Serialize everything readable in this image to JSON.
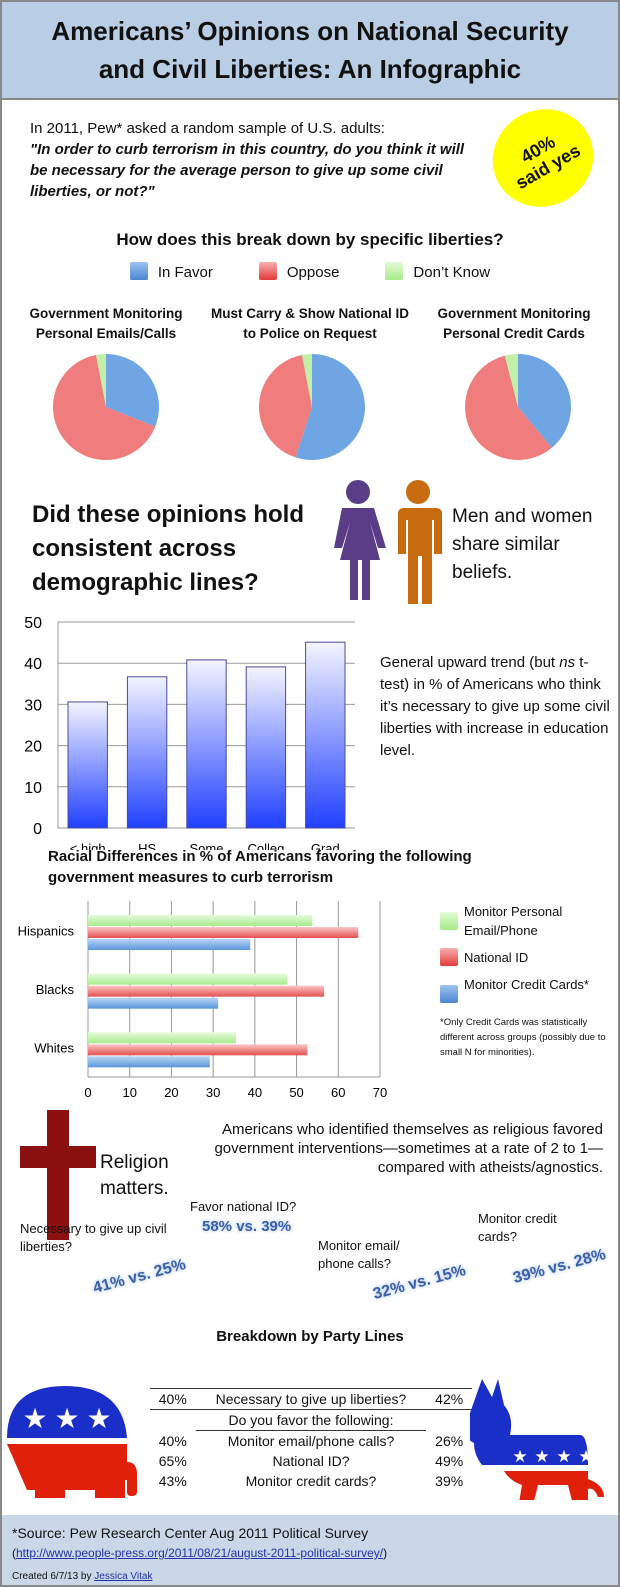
{
  "header": {
    "title_line1": "Americans’ Opinions on National Security",
    "title_line2": "and Civil Liberties: An Infographic"
  },
  "intro": {
    "text": "In 2011, Pew* asked a random sample of U.S. adults:",
    "question": "\"In order to curb terrorism in this country, do you think it will be necessary for the average person to give up some civil liberties, or not?\"",
    "badge_line1": "40%",
    "badge_line2": "said yes"
  },
  "breakdown": {
    "heading": "How does this break down by specific liberties?"
  },
  "colors": {
    "in_favor": "#5b9bd5",
    "oppose": "#ee6a6a",
    "dont_know": "#b8f0a0",
    "bar": "#2040ff",
    "women": "#5a3d86",
    "men": "#c86a10",
    "cross": "#8b1010",
    "rep_blue": "#1a2ec8",
    "rep_red": "#e0200a"
  },
  "demographics": {
    "heading": "Did these opinions hold consistent across demographic lines?",
    "gender_note": "Men and women share similar beliefs.",
    "edu_note_pre": "General upward trend (but ",
    "edu_note_ns": "ns",
    "edu_note_post": " t-test) in % of Americans who think it’s necessary to give up some civil liberties with increase in education level."
  },
  "race": {
    "footnote": "*Only Credit Cards was statistically different across groups (possibly due to small N for minorities)."
  },
  "religion": {
    "label": "Religion matters.",
    "text": "Americans who identified themselves as religious favored government interventions—sometimes at a rate of 2 to 1—compared with atheists/agnostics.",
    "stats": [
      {
        "q": "Necessary to give up civil liberties?",
        "v": "41% vs. 25%"
      },
      {
        "q": "Favor national ID?",
        "v": "58% vs. 39%"
      },
      {
        "q": "Monitor email/ phone calls?",
        "v": "32% vs. 15%"
      },
      {
        "q": "Monitor credit cards?",
        "v": "39% vs. 28%"
      }
    ]
  },
  "party": {
    "title": "Breakdown by Party Lines",
    "rows": [
      {
        "rep": "40%",
        "q": "Necessary to give up liberties?",
        "dem": "42%"
      }
    ],
    "subhead": "Do you favor the following:",
    "favor_rows": [
      {
        "rep": "40%",
        "q": "Monitor email/phone calls?",
        "dem": "26%"
      },
      {
        "rep": "65%",
        "q": "National ID?",
        "dem": "49%"
      },
      {
        "rep": "43%",
        "q": "Monitor credit cards?",
        "dem": "39%"
      }
    ]
  },
  "footer": {
    "source": "*Source: Pew Research Center Aug 2011 Political Survey",
    "paren_open": "(",
    "url": "http://www.people-press.org/2011/08/21/august-2011-political-survey/",
    "paren_close": ")",
    "created": "Created 6/7/13 by ",
    "author": "Jessica Vitak"
  },
  "chart_data": [
    {
      "type": "pie",
      "legend": [
        "In Favor",
        "Oppose",
        "Don’t Know"
      ],
      "legend_position": "top",
      "charts": [
        {
          "title": "Government Monitoring Personal Emails/Calls",
          "values": [
            31,
            66,
            3
          ]
        },
        {
          "title": "Must Carry & Show National ID to Police on Request",
          "values": [
            55,
            42,
            3
          ]
        },
        {
          "title": "Government Monitoring Personal Credit Cards",
          "values": [
            39,
            57,
            4
          ]
        }
      ]
    },
    {
      "type": "bar",
      "categories": [
        "< high school",
        "HS Grad",
        "Some College",
        "Colleg Grad",
        "Grad School"
      ],
      "values": [
        30.6,
        36.7,
        40.8,
        39.1,
        45.1
      ],
      "ylim": [
        0,
        50
      ],
      "yticks": [
        "0",
        "10",
        "20",
        "30",
        "40",
        "50"
      ],
      "grid": true
    },
    {
      "type": "bar",
      "orientation": "horizontal",
      "title": "Racial Differences in % of Americans favoring the following government measures to curb terrorism",
      "categories": [
        "Hispanics",
        "Blacks",
        "Whites"
      ],
      "xlim": [
        0,
        70
      ],
      "xticks": [
        "0",
        "10",
        "20",
        "30",
        "40",
        "50",
        "60",
        "70"
      ],
      "grid": true,
      "legend_position": "right",
      "series": [
        {
          "name": "Monitor Personal Email/Phone",
          "values": [
            53.8,
            47.8,
            35.5
          ]
        },
        {
          "name": "National ID",
          "values": [
            64.8,
            56.6,
            52.6
          ]
        },
        {
          "name": "Monitor Credit Cards*",
          "values": [
            38.9,
            31.2,
            29.2
          ]
        }
      ]
    }
  ]
}
